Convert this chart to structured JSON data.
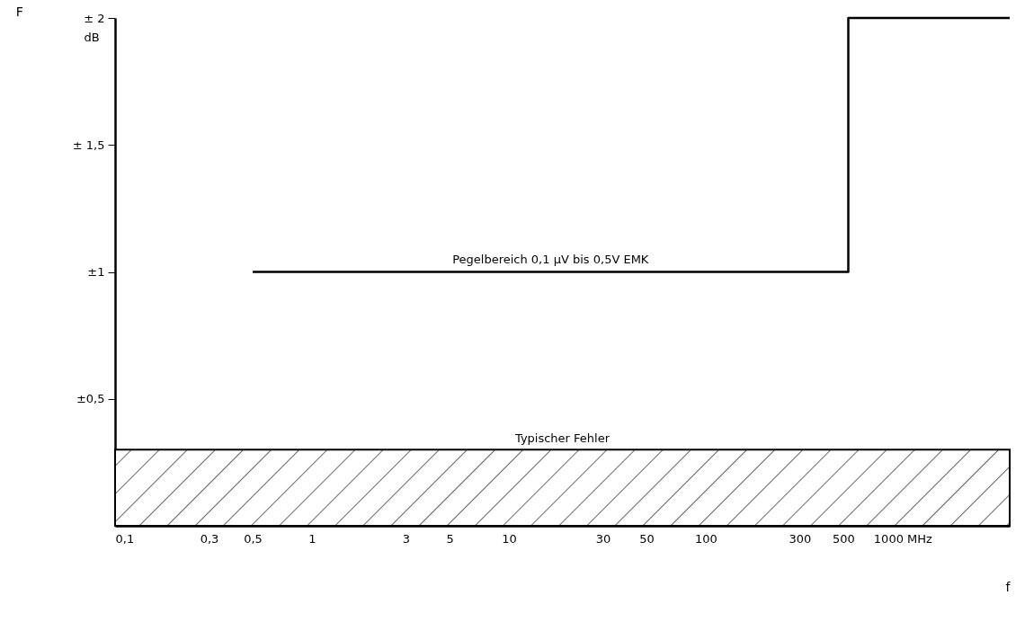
{
  "chart_data": {
    "type": "step",
    "xlabel": "f",
    "ylabel": "F",
    "log": "x",
    "grid": false,
    "legend": false,
    "xlim": [
      0.1,
      3500
    ],
    "ylim": [
      0,
      2
    ],
    "xticks": [
      {
        "value": 0.1,
        "label": "0,1"
      },
      {
        "value": 0.3,
        "label": "0,3"
      },
      {
        "value": 0.5,
        "label": "0,5"
      },
      1,
      3,
      5,
      10,
      30,
      50,
      100,
      300,
      500,
      {
        "value": 1000,
        "label": "1000 MHz"
      }
    ],
    "yticks": [
      {
        "value": 0.5,
        "label": "±0,5"
      },
      {
        "value": 1,
        "label": "±1"
      },
      {
        "value": 1.5,
        "label": "± 1,5"
      },
      {
        "value": 2,
        "label": "± 2"
      }
    ],
    "series": [
      {
        "name": "Pegelbereich 0,1 µV bis 0,5V EMK",
        "color": "#000000",
        "x": [
          0.5,
          530,
          3500
        ],
        "values": [
          1,
          2,
          2
        ]
      }
    ],
    "bands": [
      {
        "axis": "y",
        "from": 0,
        "to": 0.3,
        "label": "Typischer Fehler",
        "color": "#000000"
      }
    ],
    "annotations": [
      "dB"
    ]
  }
}
